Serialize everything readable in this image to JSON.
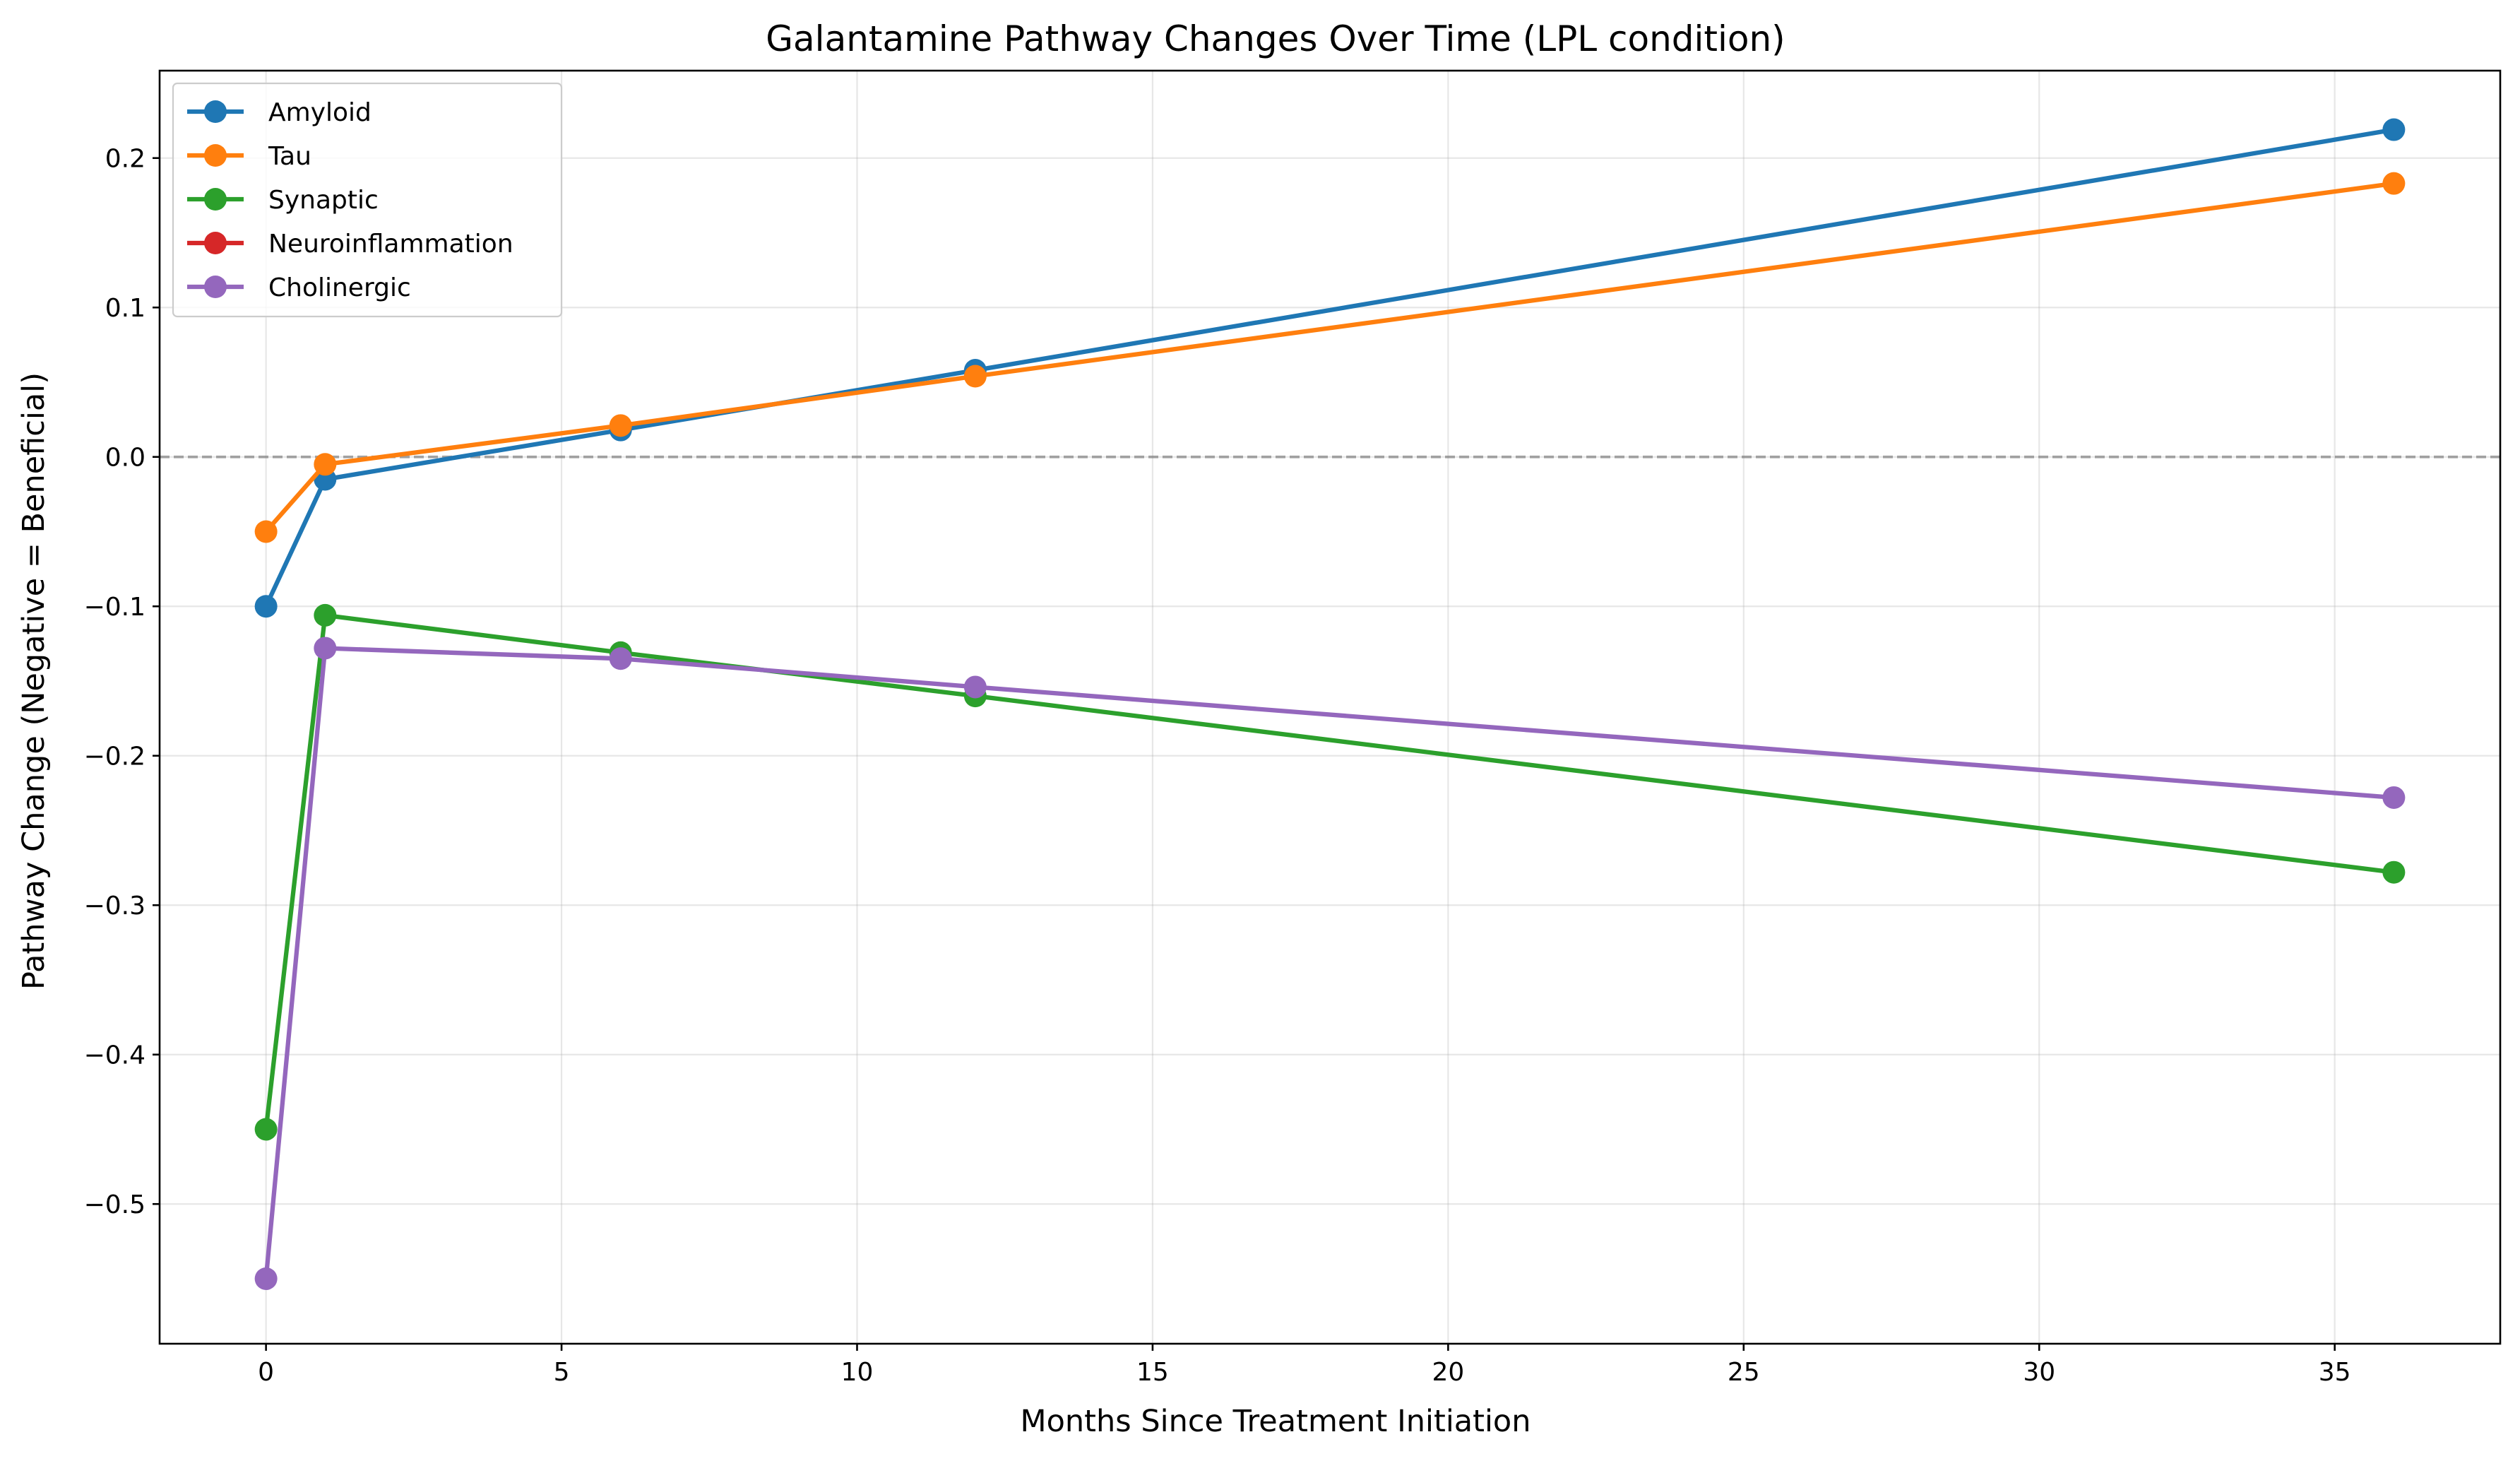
{
  "chart_data": {
    "type": "line",
    "title": "Galantamine Pathway Changes Over Time (LPL condition)",
    "xlabel": "Months Since Treatment Initiation",
    "ylabel": "Pathway Change (Negative = Beneficial)",
    "xlim": [
      -1.8,
      37.8
    ],
    "ylim": [
      -0.5935,
      0.2585
    ],
    "xticks": [
      0,
      5,
      10,
      15,
      20,
      25,
      30,
      35
    ],
    "xtick_labels": [
      "0",
      "5",
      "10",
      "15",
      "20",
      "25",
      "30",
      "35"
    ],
    "yticks": [
      -0.5,
      -0.4,
      -0.3,
      -0.2,
      -0.1,
      0.0,
      0.1,
      0.2
    ],
    "ytick_labels": [
      "−0.5",
      "−0.4",
      "−0.3",
      "−0.2",
      "−0.1",
      "0.0",
      "0.1",
      "0.2"
    ],
    "grid": true,
    "legend_position": "top-left",
    "reference_line": {
      "y": 0.0,
      "style": "dashed",
      "color": "#808080"
    },
    "x": [
      0,
      1,
      6,
      12,
      36
    ],
    "series": [
      {
        "name": "Amyloid",
        "color": "#1f77b4",
        "values": [
          -0.1,
          -0.015,
          0.018,
          0.058,
          0.219
        ]
      },
      {
        "name": "Tau",
        "color": "#ff7f0e",
        "values": [
          -0.05,
          -0.005,
          0.021,
          0.054,
          0.183
        ]
      },
      {
        "name": "Synaptic",
        "color": "#2ca02c",
        "values": [
          -0.45,
          -0.106,
          -0.131,
          -0.16,
          -0.278
        ]
      },
      {
        "name": "Neuroinflammation",
        "color": "#d62728",
        "values": [
          null,
          null,
          null,
          null,
          null
        ]
      },
      {
        "name": "Cholinergic",
        "color": "#9467bd",
        "values": [
          -0.55,
          -0.128,
          -0.135,
          -0.154,
          -0.228
        ]
      }
    ]
  }
}
